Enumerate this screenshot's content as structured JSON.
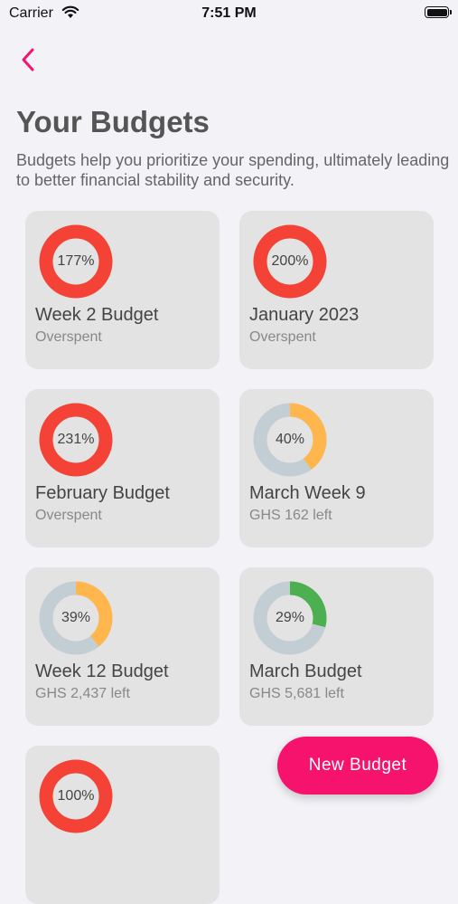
{
  "status_bar": {
    "carrier": "Carrier",
    "time": "7:51 PM",
    "icons": [
      "wifi-icon",
      "battery-icon"
    ]
  },
  "header": {
    "back_icon": "chevron-left-icon",
    "title": "Your Budgets",
    "description": "Budgets help you prioritize your spending, ultimately leading to better financial stability and security."
  },
  "colors": {
    "accent": "#f5136d",
    "overspent": "#f44336",
    "warning": "#ffb74d",
    "good": "#4caf50",
    "track": "#c2ced3",
    "card_bg": "#e3e3e3"
  },
  "budgets": [
    {
      "name": "Week 2 Budget",
      "status": "Overspent",
      "percent_label": "177%",
      "progress": 1.0,
      "color": "#f44336"
    },
    {
      "name": "January 2023",
      "status": "Overspent",
      "percent_label": "200%",
      "progress": 1.0,
      "color": "#f44336"
    },
    {
      "name": "February Budget",
      "status": "Overspent",
      "percent_label": "231%",
      "progress": 1.0,
      "color": "#f44336"
    },
    {
      "name": "March Week 9",
      "status": "GHS 162 left",
      "percent_label": "40%",
      "progress": 0.4,
      "color": "#ffb74d"
    },
    {
      "name": "Week 12 Budget",
      "status": "GHS 2,437 left",
      "percent_label": "39%",
      "progress": 0.39,
      "color": "#ffb74d"
    },
    {
      "name": "March Budget",
      "status": "GHS 5,681 left",
      "percent_label": "29%",
      "progress": 0.29,
      "color": "#4caf50"
    },
    {
      "name": "",
      "status": "",
      "percent_label": "100%",
      "progress": 1.0,
      "color": "#f44336"
    }
  ],
  "fab": {
    "label": "New Budget"
  }
}
